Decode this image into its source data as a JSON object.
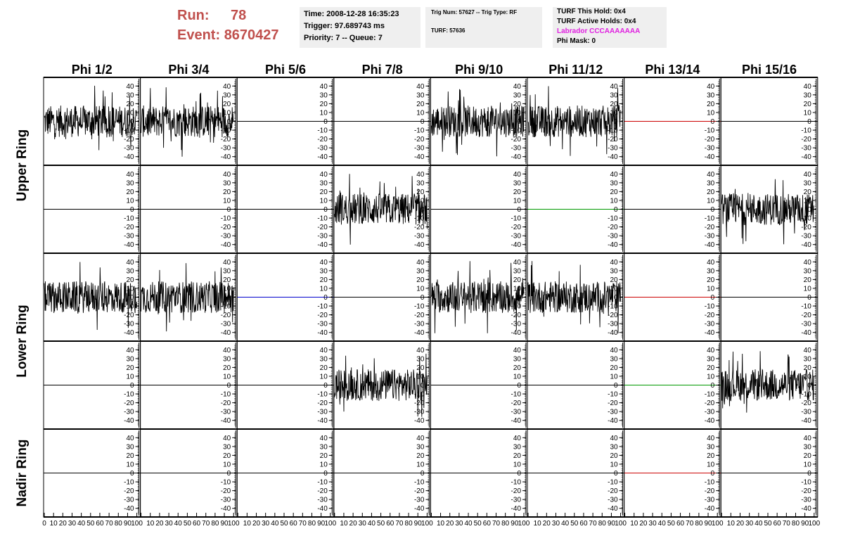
{
  "header": {
    "run_label": "Run:",
    "run_value": "78",
    "event_label": "Event:",
    "event_value": "8670427",
    "info1": [
      "Time: 2008-12-28 16:35:23",
      "Trigger: 97.689743 ms",
      "Priority: 7 -- Queue: 7"
    ],
    "info2_line1": "Trig Num: 57627 -- Trig Type: RF",
    "info2_line2": "TURF: 57636",
    "info3_line1": "TURF This Hold: 0x4",
    "info3_line2": "TURF Active Holds: 0x4",
    "info3_line3": "Labrador CCCAAAAAAA",
    "info3_line4": "Phi Mask: 0",
    "labrador_color": "#e020e0",
    "run_color": "#c0504d"
  },
  "chart_data": {
    "type": "line",
    "columns": [
      "Phi 1/2",
      "Phi 3/4",
      "Phi 5/6",
      "Phi 7/8",
      "Phi 9/10",
      "Phi 11/12",
      "Phi 13/14",
      "Phi 15/16"
    ],
    "row_groups": [
      {
        "label": "Upper Ring",
        "rows": [
          0,
          1
        ]
      },
      {
        "label": "Lower Ring",
        "rows": [
          2,
          3
        ]
      },
      {
        "label": "Nadir Ring",
        "rows": [
          4
        ]
      }
    ],
    "ylim": [
      -45,
      45
    ],
    "xlim": [
      0,
      100
    ],
    "yticks": [
      40,
      30,
      20,
      10,
      0,
      -10,
      -20,
      -30,
      -40
    ],
    "xtick_labels": [
      "0",
      "10",
      "20",
      "30",
      "40",
      "50",
      "60",
      "70",
      "80",
      "90",
      "100"
    ],
    "colors": {
      "signal": "#000000",
      "red": "#cc0000",
      "green": "#009900",
      "blue": "#0000cc"
    },
    "panels": [
      [
        "noise",
        "noise",
        "flat",
        "flat",
        "noise",
        "noise",
        "flat-red",
        "flat"
      ],
      [
        "flat",
        "flat",
        "flat",
        "noise",
        "flat",
        "flat-green",
        "flat",
        "noise"
      ],
      [
        "noise",
        "noise",
        "flat-blue",
        "flat",
        "noise",
        "noise",
        "flat-red",
        "flat"
      ],
      [
        "flat",
        "flat",
        "flat",
        "noise",
        "flat",
        "flat",
        "flat-green",
        "noise"
      ],
      [
        "flat",
        "flat",
        "flat",
        "flat",
        "flat",
        "flat",
        "flat-red",
        "flat"
      ]
    ]
  }
}
